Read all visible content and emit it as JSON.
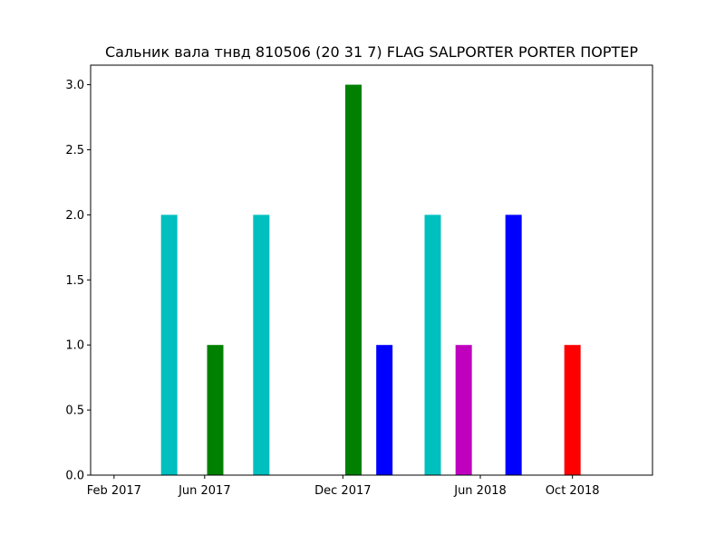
{
  "chart_data": {
    "type": "bar",
    "title": "Сальник вала тнвд 810506 (20 31 7) FLAG SALPORTER PORTER ПОРТЕР",
    "xlabel": "",
    "ylabel": "",
    "ylim": [
      0,
      3.15
    ],
    "y_ticks": [
      "0.0",
      "0.5",
      "1.0",
      "1.5",
      "2.0",
      "2.5",
      "3.0"
    ],
    "y_tick_values": [
      0,
      0.5,
      1.0,
      1.5,
      2.0,
      2.5,
      3.0
    ],
    "x_range": [
      "2017-01-01",
      "2019-01-15"
    ],
    "x_ticks": [
      {
        "label": "Feb 2017",
        "date": "2017-02-01"
      },
      {
        "label": "Jun 2017",
        "date": "2017-06-01"
      },
      {
        "label": "Dec 2017",
        "date": "2017-12-01"
      },
      {
        "label": "Jun 2018",
        "date": "2018-06-01"
      },
      {
        "label": "Oct 2018",
        "date": "2018-10-01"
      }
    ],
    "bars": [
      {
        "date": "2017-04-15",
        "value": 2,
        "color": "#00bfbf"
      },
      {
        "date": "2017-06-15",
        "value": 1,
        "color": "#008000"
      },
      {
        "date": "2017-08-15",
        "value": 2,
        "color": "#00bfbf"
      },
      {
        "date": "2017-12-15",
        "value": 3,
        "color": "#008000"
      },
      {
        "date": "2018-01-25",
        "value": 1,
        "color": "#0000ff"
      },
      {
        "date": "2018-03-30",
        "value": 2,
        "color": "#00bfbf"
      },
      {
        "date": "2018-05-10",
        "value": 1,
        "color": "#bf00bf"
      },
      {
        "date": "2018-07-15",
        "value": 2,
        "color": "#0000ff"
      },
      {
        "date": "2018-10-01",
        "value": 1,
        "color": "#ff0000"
      }
    ],
    "grid": false,
    "legend": "none"
  }
}
